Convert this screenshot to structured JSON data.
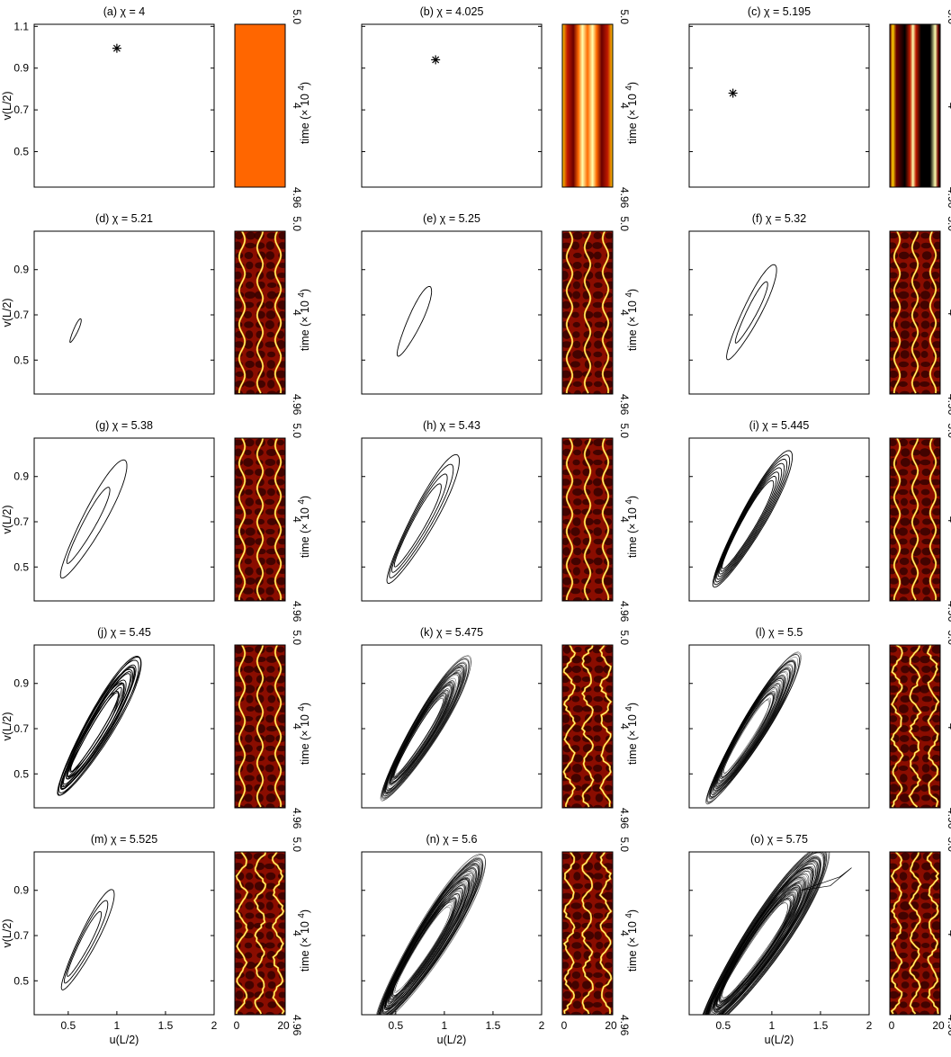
{
  "chart_data": {
    "type": "scatter",
    "xlabel": "u(L/2)",
    "ylabel": "v(L/2)",
    "strip_xlabel": "time (× 10",
    "strip_exponent": "4",
    "strip_paren": ")",
    "strip_yticks": [
      "4.96",
      "4",
      "5.0"
    ],
    "strip_xticks": [
      "0",
      "20"
    ],
    "xticks": [
      "0.5",
      "1",
      "1.5",
      "2"
    ],
    "yticks_first_row": [
      "0.5",
      "0.7",
      "0.9",
      "1.1"
    ],
    "yticks": [
      "0.5",
      "0.7",
      "0.9"
    ],
    "xlim": [
      0.15,
      2.0
    ],
    "ylim_first_row": [
      0.33,
      1.11
    ],
    "ylim": [
      0.35,
      1.07
    ],
    "colormap": [
      "#000000",
      "#6a0000",
      "#c01a00",
      "#ff6a00",
      "#ffd000",
      "#ffffb0"
    ],
    "panels": [
      {
        "label": "(a) χ = 4",
        "kind": "point",
        "u": 1.0,
        "v": 0.995,
        "strip": "uniform"
      },
      {
        "label": "(b) χ = 4.025",
        "kind": "point",
        "u": 0.91,
        "v": 0.94,
        "strip": "wide"
      },
      {
        "label": "(c) χ = 5.195",
        "kind": "point",
        "u": 0.6,
        "v": 0.78,
        "strip": "narrow"
      },
      {
        "label": "(d) χ = 5.21",
        "kind": "cycle",
        "center": [
          0.575,
          0.63
        ],
        "major": 0.08,
        "minor": 0.018,
        "angle": 45,
        "loops": 1,
        "strip": "wiggle"
      },
      {
        "label": "(e) χ = 5.25",
        "kind": "cycle",
        "center": [
          0.69,
          0.67
        ],
        "major": 0.24,
        "minor": 0.055,
        "angle": 44,
        "loops": 1,
        "strip": "wiggle"
      },
      {
        "label": "(f) χ = 5.32",
        "kind": "cycle",
        "center": [
          0.79,
          0.71
        ],
        "major": 0.34,
        "minor": 0.07,
        "angle": 42,
        "loops": 2,
        "strip": "wiggle"
      },
      {
        "label": "(g) χ = 5.38",
        "kind": "cycle",
        "center": [
          0.76,
          0.71
        ],
        "major": 0.44,
        "minor": 0.085,
        "angle": 40,
        "loops": 2,
        "spread": 0.045,
        "strip": "wiggle"
      },
      {
        "label": "(h) χ = 5.43",
        "kind": "cycle",
        "center": [
          0.78,
          0.71
        ],
        "major": 0.48,
        "minor": 0.09,
        "angle": 40,
        "loops": 4,
        "spread": 0.045,
        "strip": "wiggle"
      },
      {
        "label": "(i) χ = 5.445",
        "kind": "cycle",
        "center": [
          0.8,
          0.71
        ],
        "major": 0.52,
        "minor": 0.095,
        "angle": 39,
        "loops": 8,
        "spread": 0.04,
        "strip": "wiggle"
      },
      {
        "label": "(j) χ = 5.45",
        "kind": "chaos",
        "center": [
          0.82,
          0.71
        ],
        "major": 0.56,
        "minor": 0.1,
        "angle": 38,
        "loops": 16,
        "spread": 0.045,
        "strip": "wiggle"
      },
      {
        "label": "(k) χ = 5.475",
        "kind": "chaos",
        "center": [
          0.81,
          0.7
        ],
        "major": 0.56,
        "minor": 0.1,
        "angle": 37,
        "loops": 60,
        "spread": 0.06,
        "strip": "chaos"
      },
      {
        "label": "(l) χ = 5.5",
        "kind": "chaos",
        "center": [
          0.81,
          0.7
        ],
        "major": 0.58,
        "minor": 0.1,
        "angle": 37,
        "loops": 60,
        "spread": 0.06,
        "strip": "chaos"
      },
      {
        "label": "(m) χ = 5.525",
        "kind": "cycle",
        "center": [
          0.7,
          0.68
        ],
        "major": 0.36,
        "minor": 0.07,
        "angle": 42,
        "loops": 3,
        "spread": 0.03,
        "strip": "chaos"
      },
      {
        "label": "(n) χ = 5.6",
        "kind": "chaos",
        "center": [
          0.86,
          0.68
        ],
        "major": 0.68,
        "minor": 0.12,
        "angle": 36,
        "loops": 80,
        "spread": 0.07,
        "strip": "chaos"
      },
      {
        "label": "(o) χ = 5.75",
        "kind": "chaos",
        "center": [
          0.92,
          0.68
        ],
        "major": 0.78,
        "minor": 0.14,
        "angle": 34,
        "loops": 100,
        "spread": 0.08,
        "strip": "chaos"
      }
    ]
  }
}
